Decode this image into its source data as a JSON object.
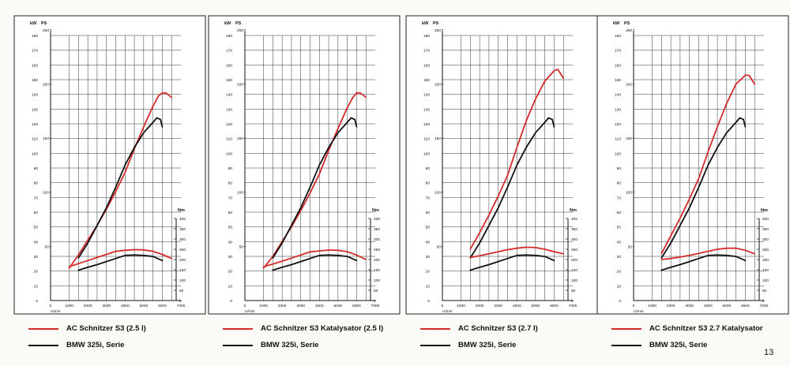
{
  "page_number": "13",
  "colors": {
    "tuned": "#d42b2b",
    "series": "#111111",
    "grid": "#333333"
  },
  "chart_data": [
    {
      "type": "line",
      "legend": [
        "AC Schnitzer S3 (2.5 l)",
        "BMW 325i, Serie"
      ],
      "series": [
        {
          "name": "AC Schnitzer S3 (2.5 l)",
          "color": "#d42b2b",
          "kind": "power",
          "x": [
            1000,
            1500,
            2000,
            2500,
            3000,
            3500,
            4000,
            4500,
            5000,
            5500,
            5800,
            6000,
            6200,
            6500
          ],
          "y": [
            22,
            31,
            41,
            51,
            62,
            74,
            87,
            103,
            118,
            132,
            139,
            141,
            141,
            138
          ]
        },
        {
          "name": "BMW 325i, Serie",
          "color": "#111111",
          "kind": "power",
          "x": [
            1500,
            2000,
            2500,
            3000,
            3500,
            4000,
            4500,
            5000,
            5500,
            5700,
            5900,
            6000
          ],
          "y": [
            29,
            39,
            51,
            63,
            77,
            92,
            104,
            114,
            121,
            124,
            123,
            118
          ]
        },
        {
          "name": "AC Schnitzer S3 (2.5 l)",
          "color": "#d42b2b",
          "kind": "torque",
          "x": [
            1000,
            1500,
            2000,
            2500,
            3000,
            3500,
            4000,
            4500,
            5000,
            5500,
            6000,
            6500
          ],
          "y": [
            165,
            180,
            195,
            210,
            225,
            240,
            245,
            248,
            247,
            240,
            225,
            205
          ]
        },
        {
          "name": "BMW 325i, Serie",
          "color": "#111111",
          "kind": "torque",
          "x": [
            1500,
            2000,
            2500,
            3000,
            3500,
            4000,
            4500,
            5000,
            5500,
            6000
          ],
          "y": [
            148,
            162,
            175,
            190,
            205,
            220,
            222,
            220,
            215,
            195
          ]
        }
      ]
    },
    {
      "type": "line",
      "legend": [
        "AC Schnitzer S3 Katalysator (2.5 l)",
        "BMW 325i, Serie"
      ],
      "series": [
        {
          "name": "AC Schnitzer S3 Katalysator (2.5 l)",
          "color": "#d42b2b",
          "kind": "power",
          "x": [
            1000,
            1500,
            2000,
            2500,
            3000,
            3500,
            4000,
            4500,
            5000,
            5500,
            5800,
            6000,
            6200,
            6500
          ],
          "y": [
            22,
            30,
            40,
            50,
            61,
            73,
            86,
            102,
            117,
            131,
            138,
            141,
            141,
            138
          ]
        },
        {
          "name": "BMW 325i, Serie",
          "color": "#111111",
          "kind": "power",
          "x": [
            1500,
            2000,
            2500,
            3000,
            3500,
            4000,
            4500,
            5000,
            5500,
            5700,
            5900,
            6000
          ],
          "y": [
            29,
            39,
            51,
            63,
            77,
            92,
            104,
            114,
            121,
            124,
            123,
            118
          ]
        },
        {
          "name": "AC Schnitzer S3 Katalysator (2.5 l)",
          "color": "#d42b2b",
          "kind": "torque",
          "x": [
            1000,
            1500,
            2000,
            2500,
            3000,
            3500,
            4000,
            4500,
            5000,
            5500,
            6000,
            6500
          ],
          "y": [
            165,
            178,
            192,
            207,
            222,
            237,
            242,
            246,
            245,
            238,
            222,
            200
          ]
        },
        {
          "name": "BMW 325i, Serie",
          "color": "#111111",
          "kind": "torque",
          "x": [
            1500,
            2000,
            2500,
            3000,
            3500,
            4000,
            4500,
            5000,
            5500,
            6000
          ],
          "y": [
            148,
            162,
            175,
            190,
            205,
            220,
            222,
            220,
            215,
            195
          ]
        }
      ]
    },
    {
      "type": "line",
      "legend": [
        "AC Schnitzer S3 (2.7 l)",
        "BMW 325i, Serie"
      ],
      "series": [
        {
          "name": "AC Schnitzer S3 (2.7 l)",
          "color": "#d42b2b",
          "kind": "power",
          "x": [
            1500,
            2000,
            2500,
            3000,
            3500,
            4000,
            4500,
            5000,
            5500,
            6000,
            6200,
            6500
          ],
          "y": [
            35,
            46,
            58,
            71,
            85,
            104,
            122,
            137,
            149,
            156,
            157,
            151
          ]
        },
        {
          "name": "BMW 325i, Serie",
          "color": "#111111",
          "kind": "power",
          "x": [
            1500,
            2000,
            2500,
            3000,
            3500,
            4000,
            4500,
            5000,
            5500,
            5700,
            5900,
            6000
          ],
          "y": [
            29,
            39,
            51,
            63,
            77,
            92,
            104,
            114,
            121,
            124,
            123,
            118
          ]
        },
        {
          "name": "AC Schnitzer S3 (2.7 l)",
          "color": "#d42b2b",
          "kind": "torque",
          "x": [
            1500,
            2000,
            2500,
            3000,
            3500,
            4000,
            4500,
            5000,
            5500,
            6000,
            6500
          ],
          "y": [
            210,
            218,
            228,
            238,
            248,
            255,
            260,
            258,
            250,
            238,
            228
          ]
        },
        {
          "name": "BMW 325i, Serie",
          "color": "#111111",
          "kind": "torque",
          "x": [
            1500,
            2000,
            2500,
            3000,
            3500,
            4000,
            4500,
            5000,
            5500,
            6000
          ],
          "y": [
            148,
            162,
            175,
            190,
            205,
            220,
            222,
            220,
            215,
            195
          ]
        }
      ]
    },
    {
      "type": "line",
      "legend": [
        "AC Schnitzer S3 2.7 Katalysator",
        "BMW 325i, Serie"
      ],
      "series": [
        {
          "name": "AC Schnitzer S3 2.7 Katalysator",
          "color": "#d42b2b",
          "kind": "power",
          "x": [
            1500,
            2000,
            2500,
            3000,
            3500,
            4000,
            4500,
            5000,
            5500,
            6000,
            6200,
            6500
          ],
          "y": [
            32,
            44,
            56,
            69,
            83,
            101,
            118,
            134,
            147,
            153,
            153,
            147
          ]
        },
        {
          "name": "BMW 325i, Serie",
          "color": "#111111",
          "kind": "power",
          "x": [
            1500,
            2000,
            2500,
            3000,
            3500,
            4000,
            4500,
            5000,
            5500,
            5700,
            5900,
            6000
          ],
          "y": [
            29,
            39,
            51,
            63,
            77,
            92,
            104,
            114,
            121,
            124,
            123,
            118
          ]
        },
        {
          "name": "AC Schnitzer S3 2.7 Katalysator",
          "color": "#d42b2b",
          "kind": "torque",
          "x": [
            1500,
            2000,
            2500,
            3000,
            3500,
            4000,
            4500,
            5000,
            5500,
            6000,
            6500
          ],
          "y": [
            200,
            205,
            212,
            220,
            230,
            240,
            250,
            255,
            255,
            245,
            228
          ]
        },
        {
          "name": "BMW 325i, Serie",
          "color": "#111111",
          "kind": "torque",
          "x": [
            1500,
            2000,
            2500,
            3000,
            3500,
            4000,
            4500,
            5000,
            5500,
            6000
          ],
          "y": [
            148,
            162,
            175,
            190,
            205,
            220,
            222,
            220,
            215,
            195
          ]
        }
      ]
    }
  ],
  "axes": {
    "kw_label": "kW",
    "ps_label": "PS",
    "nm_label": "Nm",
    "x_label": "U/min",
    "kw_ticks": [
      "0",
      "10",
      "20",
      "30",
      "40",
      "50",
      "60",
      "70",
      "80",
      "90",
      "100",
      "110",
      "120",
      "130",
      "140",
      "150",
      "160",
      "170",
      "180"
    ],
    "ps_ticks": [
      "50",
      "100",
      "150",
      "200",
      "250"
    ],
    "nm_ticks": [
      "0",
      "50",
      "100",
      "150",
      "200",
      "250",
      "300",
      "350",
      "400"
    ],
    "x_ticks": [
      "0",
      "1000",
      "2000",
      "3000",
      "4000",
      "5000",
      "6000",
      "7000"
    ],
    "kw_range": [
      0,
      180
    ],
    "nm_range": [
      0,
      400
    ],
    "x_range": [
      0,
      7000
    ]
  }
}
